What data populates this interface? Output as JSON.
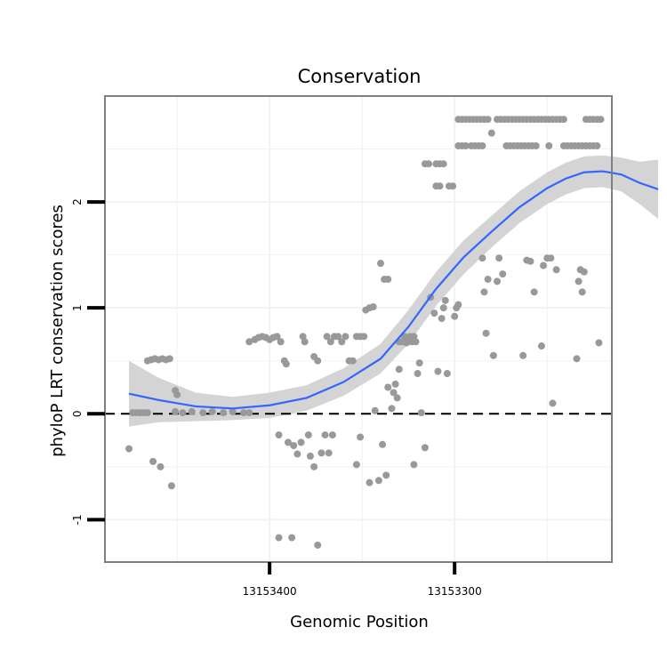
{
  "chart_data": {
    "type": "scatter",
    "title": "Conservation",
    "xlabel": "Genomic Position",
    "ylabel": "phyloP LRT conservation scores",
    "x_reversed": true,
    "xlim": [
      13153489,
      13153215
    ],
    "ylim": [
      -1.4,
      3.0
    ],
    "x_ticks": [
      {
        "value": 13153400,
        "label": "13153400"
      },
      {
        "value": 13153300,
        "label": "13153300"
      }
    ],
    "y_ticks": [
      {
        "value": -1,
        "label": "-1"
      },
      {
        "value": 0,
        "label": "0"
      },
      {
        "value": 1,
        "label": "1"
      },
      {
        "value": 2,
        "label": "2"
      }
    ],
    "grid": true,
    "reference_line": {
      "y": 0,
      "style": "dashed"
    },
    "colors": {
      "points": "#999999",
      "smooth_line": "#3366FF",
      "confidence_band": "#d4d4d4",
      "panel_border": "#7f7f7f",
      "grid": "#f2f2f2",
      "reference_line": "#000000"
    },
    "points": [
      {
        "x": 13153476,
        "y": -0.33
      },
      {
        "x": 13153474,
        "y": 0.01
      },
      {
        "x": 13153472,
        "y": 0.01
      },
      {
        "x": 13153470,
        "y": 0.01
      },
      {
        "x": 13153468,
        "y": 0.01
      },
      {
        "x": 13153466,
        "y": 0.01
      },
      {
        "x": 13153466,
        "y": 0.5
      },
      {
        "x": 13153464,
        "y": 0.51
      },
      {
        "x": 13153462,
        "y": 0.52
      },
      {
        "x": 13153460,
        "y": 0.51
      },
      {
        "x": 13153458,
        "y": 0.52
      },
      {
        "x": 13153456,
        "y": 0.51
      },
      {
        "x": 13153454,
        "y": 0.52
      },
      {
        "x": 13153463,
        "y": -0.45
      },
      {
        "x": 13153459,
        "y": -0.5
      },
      {
        "x": 13153453,
        "y": -0.68
      },
      {
        "x": 13153451,
        "y": 0.22
      },
      {
        "x": 13153450,
        "y": 0.18
      },
      {
        "x": 13153451,
        "y": 0.02
      },
      {
        "x": 13153447,
        "y": 0.01
      },
      {
        "x": 13153442,
        "y": 0.02
      },
      {
        "x": 13153436,
        "y": 0.01
      },
      {
        "x": 13153431,
        "y": 0.02
      },
      {
        "x": 13153425,
        "y": 0.01
      },
      {
        "x": 13153420,
        "y": 0.02
      },
      {
        "x": 13153414,
        "y": 0.01
      },
      {
        "x": 13153411,
        "y": 0.01
      },
      {
        "x": 13153411,
        "y": 0.68
      },
      {
        "x": 13153408,
        "y": 0.7
      },
      {
        "x": 13153406,
        "y": 0.72
      },
      {
        "x": 13153404,
        "y": 0.73
      },
      {
        "x": 13153402,
        "y": 0.72
      },
      {
        "x": 13153400,
        "y": 0.7
      },
      {
        "x": 13153398,
        "y": 0.72
      },
      {
        "x": 13153396,
        "y": 0.73
      },
      {
        "x": 13153394,
        "y": 0.68
      },
      {
        "x": 13153395,
        "y": -0.2
      },
      {
        "x": 13153392,
        "y": 0.5
      },
      {
        "x": 13153391,
        "y": 0.47
      },
      {
        "x": 13153390,
        "y": -0.27
      },
      {
        "x": 13153387,
        "y": -0.3
      },
      {
        "x": 13153385,
        "y": -0.38
      },
      {
        "x": 13153383,
        "y": -0.27
      },
      {
        "x": 13153382,
        "y": 0.73
      },
      {
        "x": 13153381,
        "y": 0.68
      },
      {
        "x": 13153379,
        "y": -0.2
      },
      {
        "x": 13153378,
        "y": -0.4
      },
      {
        "x": 13153376,
        "y": -0.5
      },
      {
        "x": 13153395,
        "y": -1.17
      },
      {
        "x": 13153388,
        "y": -1.17
      },
      {
        "x": 13153374,
        "y": -1.24
      },
      {
        "x": 13153376,
        "y": 0.54
      },
      {
        "x": 13153374,
        "y": 0.5
      },
      {
        "x": 13153372,
        "y": -0.37
      },
      {
        "x": 13153370,
        "y": -0.2
      },
      {
        "x": 13153368,
        "y": -0.37
      },
      {
        "x": 13153366,
        "y": -0.2
      },
      {
        "x": 13153369,
        "y": 0.73
      },
      {
        "x": 13153367,
        "y": 0.68
      },
      {
        "x": 13153365,
        "y": 0.73
      },
      {
        "x": 13153363,
        "y": 0.73
      },
      {
        "x": 13153361,
        "y": 0.68
      },
      {
        "x": 13153359,
        "y": 0.73
      },
      {
        "x": 13153357,
        "y": 0.5
      },
      {
        "x": 13153355,
        "y": 0.5
      },
      {
        "x": 13153353,
        "y": 0.73
      },
      {
        "x": 13153351,
        "y": 0.73
      },
      {
        "x": 13153349,
        "y": 0.73
      },
      {
        "x": 13153353,
        "y": -0.48
      },
      {
        "x": 13153351,
        "y": -0.22
      },
      {
        "x": 13153348,
        "y": 0.98
      },
      {
        "x": 13153346,
        "y": 1.0
      },
      {
        "x": 13153344,
        "y": 1.01
      },
      {
        "x": 13153346,
        "y": -0.65
      },
      {
        "x": 13153343,
        "y": 0.03
      },
      {
        "x": 13153341,
        "y": -0.63
      },
      {
        "x": 13153340,
        "y": 1.42
      },
      {
        "x": 13153339,
        "y": -0.29
      },
      {
        "x": 13153338,
        "y": 1.27
      },
      {
        "x": 13153337,
        "y": -0.58
      },
      {
        "x": 13153336,
        "y": 1.27
      },
      {
        "x": 13153336,
        "y": 0.25
      },
      {
        "x": 13153334,
        "y": 0.05
      },
      {
        "x": 13153333,
        "y": 0.2
      },
      {
        "x": 13153332,
        "y": 0.28
      },
      {
        "x": 13153331,
        "y": 0.15
      },
      {
        "x": 13153330,
        "y": 0.42
      },
      {
        "x": 13153330,
        "y": 0.68
      },
      {
        "x": 13153328,
        "y": 0.68
      },
      {
        "x": 13153327,
        "y": 0.73
      },
      {
        "x": 13153326,
        "y": 0.67
      },
      {
        "x": 13153325,
        "y": 0.68
      },
      {
        "x": 13153324,
        "y": 0.73
      },
      {
        "x": 13153323,
        "y": 0.68
      },
      {
        "x": 13153322,
        "y": 0.73
      },
      {
        "x": 13153321,
        "y": 0.68
      },
      {
        "x": 13153322,
        "y": -0.48
      },
      {
        "x": 13153320,
        "y": 0.38
      },
      {
        "x": 13153319,
        "y": 0.48
      },
      {
        "x": 13153318,
        "y": 0.01
      },
      {
        "x": 13153316,
        "y": -0.32
      },
      {
        "x": 13153316,
        "y": 2.36
      },
      {
        "x": 13153314,
        "y": 2.36
      },
      {
        "x": 13153310,
        "y": 2.36
      },
      {
        "x": 13153308,
        "y": 2.36
      },
      {
        "x": 13153306,
        "y": 2.36
      },
      {
        "x": 13153310,
        "y": 2.15
      },
      {
        "x": 13153308,
        "y": 2.15
      },
      {
        "x": 13153313,
        "y": 1.1
      },
      {
        "x": 13153311,
        "y": 0.95
      },
      {
        "x": 13153309,
        "y": 0.4
      },
      {
        "x": 13153307,
        "y": 0.9
      },
      {
        "x": 13153306,
        "y": 1.0
      },
      {
        "x": 13153305,
        "y": 1.07
      },
      {
        "x": 13153304,
        "y": 0.38
      },
      {
        "x": 13153303,
        "y": 2.15
      },
      {
        "x": 13153301,
        "y": 2.15
      },
      {
        "x": 13153300,
        "y": 0.92
      },
      {
        "x": 13153299,
        "y": 1.0
      },
      {
        "x": 13153298,
        "y": 1.03
      },
      {
        "x": 13153298,
        "y": 2.78
      },
      {
        "x": 13153296,
        "y": 2.78
      },
      {
        "x": 13153294,
        "y": 2.78
      },
      {
        "x": 13153292,
        "y": 2.78
      },
      {
        "x": 13153290,
        "y": 2.78
      },
      {
        "x": 13153288,
        "y": 2.78
      },
      {
        "x": 13153286,
        "y": 2.78
      },
      {
        "x": 13153284,
        "y": 2.78
      },
      {
        "x": 13153282,
        "y": 2.78
      },
      {
        "x": 13153298,
        "y": 2.53
      },
      {
        "x": 13153296,
        "y": 2.53
      },
      {
        "x": 13153294,
        "y": 2.53
      },
      {
        "x": 13153291,
        "y": 2.53
      },
      {
        "x": 13153289,
        "y": 2.53
      },
      {
        "x": 13153287,
        "y": 2.53
      },
      {
        "x": 13153285,
        "y": 2.53
      },
      {
        "x": 13153285,
        "y": 1.47
      },
      {
        "x": 13153284,
        "y": 1.15
      },
      {
        "x": 13153283,
        "y": 0.76
      },
      {
        "x": 13153282,
        "y": 1.27
      },
      {
        "x": 13153280,
        "y": 2.65
      },
      {
        "x": 13153279,
        "y": 0.55
      },
      {
        "x": 13153277,
        "y": 1.25
      },
      {
        "x": 13153276,
        "y": 1.47
      },
      {
        "x": 13153274,
        "y": 1.32
      },
      {
        "x": 13153277,
        "y": 2.78
      },
      {
        "x": 13153275,
        "y": 2.78
      },
      {
        "x": 13153273,
        "y": 2.78
      },
      {
        "x": 13153271,
        "y": 2.78
      },
      {
        "x": 13153269,
        "y": 2.78
      },
      {
        "x": 13153267,
        "y": 2.78
      },
      {
        "x": 13153265,
        "y": 2.78
      },
      {
        "x": 13153263,
        "y": 2.78
      },
      {
        "x": 13153261,
        "y": 2.78
      },
      {
        "x": 13153259,
        "y": 2.78
      },
      {
        "x": 13153257,
        "y": 2.78
      },
      {
        "x": 13153255,
        "y": 2.78
      },
      {
        "x": 13153253,
        "y": 2.78
      },
      {
        "x": 13153251,
        "y": 2.78
      },
      {
        "x": 13153249,
        "y": 2.78
      },
      {
        "x": 13153247,
        "y": 2.78
      },
      {
        "x": 13153245,
        "y": 2.78
      },
      {
        "x": 13153243,
        "y": 2.78
      },
      {
        "x": 13153241,
        "y": 2.78
      },
      {
        "x": 13153272,
        "y": 2.53
      },
      {
        "x": 13153270,
        "y": 2.53
      },
      {
        "x": 13153268,
        "y": 2.53
      },
      {
        "x": 13153266,
        "y": 2.53
      },
      {
        "x": 13153264,
        "y": 2.53
      },
      {
        "x": 13153262,
        "y": 2.53
      },
      {
        "x": 13153260,
        "y": 2.53
      },
      {
        "x": 13153258,
        "y": 2.53
      },
      {
        "x": 13153256,
        "y": 2.53
      },
      {
        "x": 13153263,
        "y": 0.55
      },
      {
        "x": 13153261,
        "y": 1.45
      },
      {
        "x": 13153259,
        "y": 1.44
      },
      {
        "x": 13153257,
        "y": 1.15
      },
      {
        "x": 13153253,
        "y": 0.64
      },
      {
        "x": 13153249,
        "y": 2.53
      },
      {
        "x": 13153241,
        "y": 2.53
      },
      {
        "x": 13153239,
        "y": 2.53
      },
      {
        "x": 13153237,
        "y": 2.53
      },
      {
        "x": 13153235,
        "y": 2.53
      },
      {
        "x": 13153233,
        "y": 2.53
      },
      {
        "x": 13153231,
        "y": 2.53
      },
      {
        "x": 13153229,
        "y": 2.53
      },
      {
        "x": 13153227,
        "y": 2.53
      },
      {
        "x": 13153225,
        "y": 2.53
      },
      {
        "x": 13153223,
        "y": 2.53
      },
      {
        "x": 13153252,
        "y": 1.4
      },
      {
        "x": 13153250,
        "y": 1.47
      },
      {
        "x": 13153248,
        "y": 1.47
      },
      {
        "x": 13153247,
        "y": 0.1
      },
      {
        "x": 13153245,
        "y": 1.36
      },
      {
        "x": 13153234,
        "y": 0.52
      },
      {
        "x": 13153233,
        "y": 1.25
      },
      {
        "x": 13153232,
        "y": 1.36
      },
      {
        "x": 13153231,
        "y": 1.15
      },
      {
        "x": 13153230,
        "y": 1.34
      },
      {
        "x": 13153222,
        "y": 0.67
      },
      {
        "x": 13153229,
        "y": 2.78
      },
      {
        "x": 13153227,
        "y": 2.78
      },
      {
        "x": 13153225,
        "y": 2.78
      },
      {
        "x": 13153223,
        "y": 2.78
      },
      {
        "x": 13153221,
        "y": 2.78
      }
    ],
    "smooth": [
      {
        "x": 13153476,
        "y": 0.19,
        "lower": -0.12,
        "upper": 0.5
      },
      {
        "x": 13153460,
        "y": 0.13,
        "lower": -0.08,
        "upper": 0.34
      },
      {
        "x": 13153440,
        "y": 0.07,
        "lower": -0.07,
        "upper": 0.2
      },
      {
        "x": 13153420,
        "y": 0.05,
        "lower": -0.06,
        "upper": 0.16
      },
      {
        "x": 13153400,
        "y": 0.08,
        "lower": -0.04,
        "upper": 0.2
      },
      {
        "x": 13153380,
        "y": 0.15,
        "lower": 0.03,
        "upper": 0.27
      },
      {
        "x": 13153360,
        "y": 0.3,
        "lower": 0.17,
        "upper": 0.43
      },
      {
        "x": 13153340,
        "y": 0.52,
        "lower": 0.38,
        "upper": 0.66
      },
      {
        "x": 13153325,
        "y": 0.82,
        "lower": 0.66,
        "upper": 0.98
      },
      {
        "x": 13153310,
        "y": 1.18,
        "lower": 1.02,
        "upper": 1.34
      },
      {
        "x": 13153295,
        "y": 1.48,
        "lower": 1.32,
        "upper": 1.64
      },
      {
        "x": 13153280,
        "y": 1.72,
        "lower": 1.57,
        "upper": 1.87
      },
      {
        "x": 13153265,
        "y": 1.95,
        "lower": 1.8,
        "upper": 2.1
      },
      {
        "x": 13153250,
        "y": 2.13,
        "lower": 1.98,
        "upper": 2.28
      },
      {
        "x": 13153240,
        "y": 2.22,
        "lower": 2.07,
        "upper": 2.37
      },
      {
        "x": 13153230,
        "y": 2.28,
        "lower": 2.13,
        "upper": 2.43
      },
      {
        "x": 13153220,
        "y": 2.29,
        "lower": 2.14,
        "upper": 2.44
      },
      {
        "x": 13153210,
        "y": 2.26,
        "lower": 2.1,
        "upper": 2.42
      },
      {
        "x": 13153200,
        "y": 2.18,
        "lower": 1.98,
        "upper": 2.38
      },
      {
        "x": 13153190,
        "y": 2.12,
        "lower": 1.84,
        "upper": 2.4
      }
    ]
  }
}
